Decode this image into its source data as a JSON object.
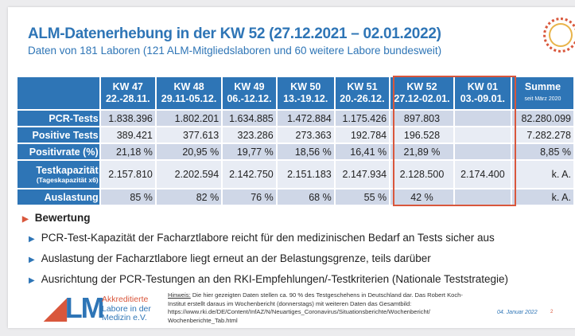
{
  "title": "ALM-Datenerhebung in der KW 52 (27.12.2021 – 02.01.2022)",
  "subtitle": "Daten von 181 Laboren (121 ALM-Mitgliedslaboren und 60 weitere Labore bundesweit)",
  "table": {
    "headers": [
      {
        "kw": "KW 47",
        "range": "22.-28.11."
      },
      {
        "kw": "KW 48",
        "range": "29.11-05.12."
      },
      {
        "kw": "KW 49",
        "range": "06.-12.12."
      },
      {
        "kw": "KW 50",
        "range": "13.-19.12."
      },
      {
        "kw": "KW 51",
        "range": "20.-26.12."
      },
      {
        "kw": "KW 52",
        "range": "27.12-02.01."
      },
      {
        "kw": "KW 01",
        "range": "03.-09.01."
      },
      {
        "kw": "Summe",
        "range": "seit März 2020"
      }
    ],
    "rows": [
      {
        "label": "PCR-Tests",
        "values": [
          "1.838.396",
          "1.802.201",
          "1.634.885",
          "1.472.884",
          "1.175.426",
          "897.803",
          "",
          "82.280.099"
        ]
      },
      {
        "label": "Positive Tests",
        "values": [
          "389.421",
          "377.613",
          "323.286",
          "273.363",
          "192.784",
          "196.528",
          "",
          "7.282.278"
        ]
      },
      {
        "label": "Positivrate (%)",
        "values": [
          "21,18 %",
          "20,95 %",
          "19,77 %",
          "18,56 %",
          "16,41 %",
          "21,89 %",
          "",
          "8,85 %"
        ]
      },
      {
        "label": "Testkapazität",
        "sublabel": "(Tageskapazität x6)",
        "values": [
          "2.157.810",
          "2.202.594",
          "2.142.750",
          "2.151.183",
          "2.147.934",
          "2.128.500",
          "2.174.400",
          "k. A."
        ]
      },
      {
        "label": "Auslastung",
        "values": [
          "85 %",
          "82 %",
          "76 %",
          "68 %",
          "55 %",
          "42 %",
          "",
          "k. A."
        ]
      }
    ]
  },
  "bewertung": {
    "heading": "Bewertung",
    "items": [
      "PCR-Test-Kapazität der Facharztlabore reicht für den medizinischen Bedarf an Tests sicher aus",
      "Auslastung der Facharztlabore liegt erneut an der Belastungsgrenze, teils darüber",
      "Ausrichtung der PCR-Testungen an den RKI-Empfehlungen/-Testkriterien (Nationale Teststrategie)"
    ]
  },
  "logo": {
    "mark": "ALM",
    "lines": [
      "Akkreditierte",
      "Labore in der",
      "Medizin e.V."
    ]
  },
  "footer": {
    "hint_label": "Hinweis:",
    "hint_text": " Die hier gezeigten Daten stellen ca. 90 % des Testgeschehens in Deutschland dar. Das Robert Koch-Institut erstellt daraus im Wochenbericht (donnerstags) mit weiteren Daten das Gesamtbild: https://www.rki.de/DE/Content/InfAZ/N/Neuartiges_Coronavirus/Situationsberichte/Wochenbericht/ Wochenberichte_Tab.html",
    "date": "04. Januar 2022",
    "page": "2"
  },
  "colors": {
    "blue": "#2e75b6",
    "red": "#d9573c"
  }
}
